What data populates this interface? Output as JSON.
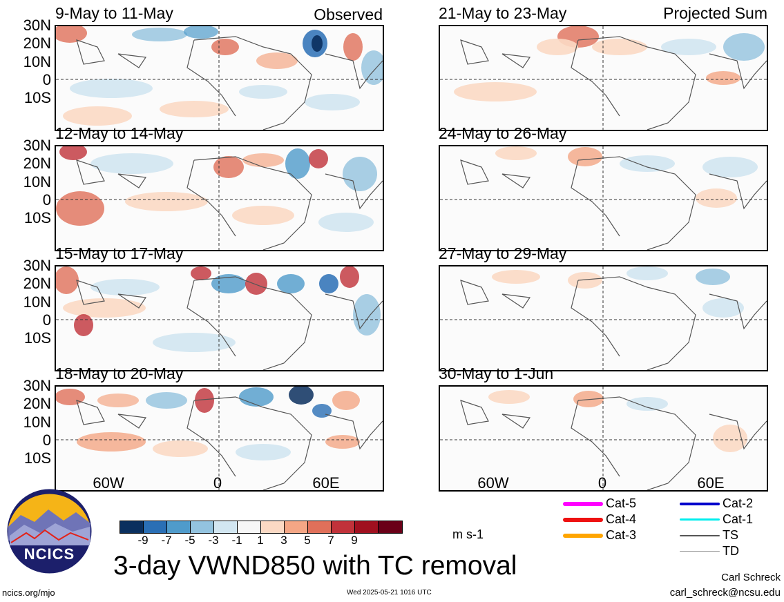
{
  "panels_observed": [
    {
      "title": "9-May to 11-May",
      "tag": "Observed"
    },
    {
      "title": "12-May to 14-May",
      "tag": ""
    },
    {
      "title": "15-May to 17-May",
      "tag": ""
    },
    {
      "title": "18-May to 20-May",
      "tag": ""
    }
  ],
  "panels_projected": [
    {
      "title": "21-May to 23-May",
      "tag": "Projected Sum"
    },
    {
      "title": "24-May to 26-May",
      "tag": ""
    },
    {
      "title": "27-May to 29-May",
      "tag": ""
    },
    {
      "title": "30-May to 1-Jun",
      "tag": ""
    }
  ],
  "lat_labels": [
    "30N",
    "20N",
    "10N",
    "0",
    "10S"
  ],
  "lon_labels": [
    "60W",
    "0",
    "60E"
  ],
  "colorbar": {
    "colors": [
      "#0a2f5e",
      "#2a6fb5",
      "#4f9bcb",
      "#93c3df",
      "#d2e6f1",
      "#f7f7f7",
      "#fbd9c4",
      "#f4a685",
      "#e0705a",
      "#c1323a",
      "#a0101f",
      "#6a0018"
    ],
    "ticks": [
      "-9",
      "-7",
      "-5",
      "-3",
      "-1",
      "1",
      "3",
      "5",
      "7",
      "9"
    ],
    "units": "m s-1"
  },
  "main_title": "3-day VWND850 with TC removal",
  "tc_legend": [
    {
      "label": "Cat-5",
      "color": "#ff00ff"
    },
    {
      "label": "Cat-4",
      "color": "#ee1111"
    },
    {
      "label": "Cat-3",
      "color": "#ffa500"
    },
    {
      "label": "Cat-2",
      "color": "#0000cc"
    },
    {
      "label": "Cat-1",
      "color": "#00eeee"
    },
    {
      "label": "TS",
      "color": "#555555"
    },
    {
      "label": "TD",
      "color": "#999999"
    }
  ],
  "logo_text": "NCICS",
  "footer": {
    "url": "ncics.org/mjo",
    "timestamp": "Wed 2025-05-21 1016 UTC",
    "author": "Carl Schreck",
    "email": "carl_schreck@ncsu.edu"
  }
}
